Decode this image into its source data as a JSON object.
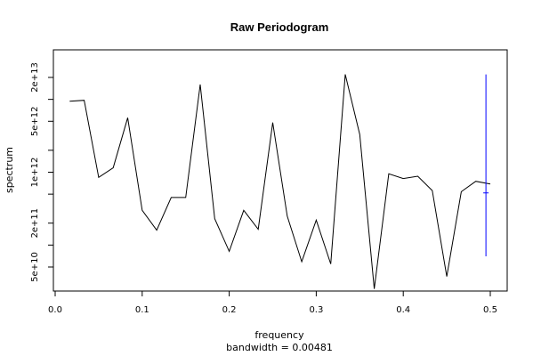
{
  "chart_data": {
    "type": "line",
    "title": "Raw Periodogram",
    "xlabel": "frequency",
    "ylabel": "spectrum",
    "subtitle": "bandwidth = 0.00481",
    "x_scale": "linear",
    "y_scale": "log",
    "xlim": [
      0.0,
      0.5
    ],
    "ylim": [
      17000000000,
      40000000000000
    ],
    "x_ticks": [
      0.0,
      0.1,
      0.2,
      0.3,
      0.4,
      0.5
    ],
    "x_tick_labels": [
      "0.0",
      "0.1",
      "0.2",
      "0.3",
      "0.4",
      "0.5"
    ],
    "y_ticks": [
      50000000000,
      200000000000,
      1000000000000,
      5000000000000,
      20000000000000
    ],
    "y_tick_labels": [
      "5e+10",
      "2e+11",
      "1e+12",
      "5e+12",
      "2e+13"
    ],
    "y_minor_ticks": [
      100000000000,
      500000000000,
      2000000000000,
      10000000000000
    ],
    "grid": false,
    "legend": "none",
    "series": [
      {
        "color": "#000000",
        "x": [
          0.01667,
          0.03333,
          0.05,
          0.06667,
          0.08333,
          0.1,
          0.11667,
          0.13333,
          0.15,
          0.16667,
          0.18333,
          0.2,
          0.21667,
          0.23333,
          0.25,
          0.26667,
          0.28333,
          0.3,
          0.31667,
          0.33333,
          0.35,
          0.36667,
          0.38333,
          0.4,
          0.41667,
          0.43333,
          0.45,
          0.46667,
          0.48333,
          0.5
        ],
        "y": [
          9400000000000,
          9700000000000,
          850000000000,
          1150000000000,
          5600000000000,
          300000000000,
          160000000000,
          450000000000,
          450000000000,
          16000000000000,
          230000000000,
          82000000000,
          300000000000,
          165000000000,
          4800000000000,
          250000000000,
          59000000000,
          220000000000,
          55000000000,
          22000000000000,
          3300000000000,
          25000000000,
          950000000000,
          820000000000,
          880000000000,
          560000000000,
          37000000000,
          540000000000,
          750000000000,
          690000000000
        ]
      }
    ],
    "error_bar": {
      "color": "#0000ff",
      "x": 0.495,
      "y_low": 70000000000,
      "y_center": 520000000000,
      "y_high": 22000000000000
    }
  }
}
